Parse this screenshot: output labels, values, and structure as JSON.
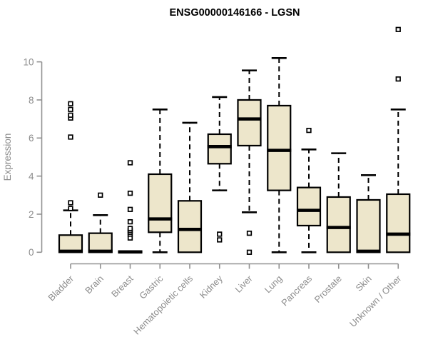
{
  "window": {
    "title": "ENSG00000146166 - LGSN"
  },
  "colors": {
    "background": "#ffffff",
    "box_fill": "#ede6cb",
    "box_border": "#000000",
    "median_line": "#000000",
    "whisker": "#000000",
    "outlier_stroke": "#000000",
    "outlier_fill": "#ffffff",
    "axis_line": "#919191",
    "axis_text": "#8c8c8c",
    "title_text": "#000000"
  },
  "chart_data": {
    "type": "boxplot",
    "title": "ENSG00000146166 - LGSN",
    "xlabel": "",
    "ylabel": "Expression",
    "ylim": [
      0,
      10
    ],
    "yticks": [
      0,
      2,
      4,
      6,
      8,
      10
    ],
    "grid": false,
    "legend": null,
    "categories": [
      "Bladder",
      "Brain",
      "Breast",
      "Gastric",
      "Hematopoietic cells",
      "Kidney",
      "Liver",
      "Lung",
      "Pancreas",
      "Prostate",
      "Skin",
      "Unknown / Other"
    ],
    "boxes": [
      {
        "label": "Bladder",
        "q1": 0,
        "median": 0.05,
        "q3": 0.9,
        "whisker_low": null,
        "whisker_high": 2.2,
        "outliers": [
          2.3,
          2.6,
          6.05,
          7.05,
          7.2,
          7.5,
          7.8
        ]
      },
      {
        "label": "Brain",
        "q1": 0,
        "median": 0.05,
        "q3": 1.0,
        "whisker_low": null,
        "whisker_high": 1.95,
        "outliers": [
          3.0
        ]
      },
      {
        "label": "Breast",
        "q1": 0,
        "median": 0.02,
        "q3": 0.05,
        "whisker_low": null,
        "whisker_high": null,
        "outliers": [
          0.75,
          0.95,
          1.05,
          1.15,
          1.25,
          1.6,
          2.25,
          3.1,
          4.7
        ]
      },
      {
        "label": "Gastric",
        "q1": 1.05,
        "median": 1.75,
        "q3": 4.1,
        "whisker_low": 0,
        "whisker_high": 7.5,
        "outliers": []
      },
      {
        "label": "Hematopoietic cells",
        "q1": 0,
        "median": 1.2,
        "q3": 2.7,
        "whisker_low": null,
        "whisker_high": 6.8,
        "outliers": []
      },
      {
        "label": "Kidney",
        "q1": 4.65,
        "median": 5.55,
        "q3": 6.2,
        "whisker_low": 3.25,
        "whisker_high": 8.15,
        "outliers": [
          0.95,
          0.65
        ]
      },
      {
        "label": "Liver",
        "q1": 5.6,
        "median": 7.0,
        "q3": 8.0,
        "whisker_low": 2.1,
        "whisker_high": 9.55,
        "outliers": [
          1.0,
          0.0
        ]
      },
      {
        "label": "Lung",
        "q1": 3.25,
        "median": 5.35,
        "q3": 7.7,
        "whisker_low": 0,
        "whisker_high": 10.2,
        "outliers": []
      },
      {
        "label": "Pancreas",
        "q1": 1.4,
        "median": 2.2,
        "q3": 3.4,
        "whisker_low": 0,
        "whisker_high": 5.4,
        "outliers": [
          6.4
        ]
      },
      {
        "label": "Prostate",
        "q1": 0,
        "median": 1.3,
        "q3": 2.9,
        "whisker_low": null,
        "whisker_high": 5.2,
        "outliers": []
      },
      {
        "label": "Skin",
        "q1": 0,
        "median": 0.05,
        "q3": 2.75,
        "whisker_low": null,
        "whisker_high": 4.05,
        "outliers": []
      },
      {
        "label": "Unknown / Other",
        "q1": 0,
        "median": 0.95,
        "q3": 3.05,
        "whisker_low": null,
        "whisker_high": 7.5,
        "outliers": [
          9.1,
          11.7
        ]
      }
    ]
  }
}
